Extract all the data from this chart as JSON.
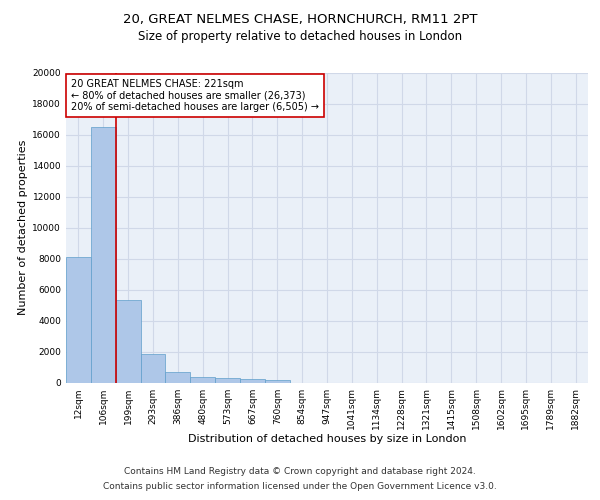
{
  "title1": "20, GREAT NELMES CHASE, HORNCHURCH, RM11 2PT",
  "title2": "Size of property relative to detached houses in London",
  "xlabel": "Distribution of detached houses by size in London",
  "ylabel": "Number of detached properties",
  "categories": [
    "12sqm",
    "106sqm",
    "199sqm",
    "293sqm",
    "386sqm",
    "480sqm",
    "573sqm",
    "667sqm",
    "760sqm",
    "854sqm",
    "947sqm",
    "1041sqm",
    "1134sqm",
    "1228sqm",
    "1321sqm",
    "1415sqm",
    "1508sqm",
    "1602sqm",
    "1695sqm",
    "1789sqm",
    "1882sqm"
  ],
  "values": [
    8100,
    16500,
    5300,
    1850,
    700,
    350,
    270,
    200,
    170,
    0,
    0,
    0,
    0,
    0,
    0,
    0,
    0,
    0,
    0,
    0,
    0
  ],
  "bar_color": "#aec7e8",
  "bar_edge_color": "#5f9eca",
  "annotation_text": "20 GREAT NELMES CHASE: 221sqm\n← 80% of detached houses are smaller (26,373)\n20% of semi-detached houses are larger (6,505) →",
  "vline_x": 1.5,
  "annotation_box_color": "#ffffff",
  "annotation_box_edge": "#cc0000",
  "vline_color": "#cc0000",
  "grid_color": "#d0d8e8",
  "bg_color": "#eaf0f8",
  "footnote1": "Contains HM Land Registry data © Crown copyright and database right 2024.",
  "footnote2": "Contains public sector information licensed under the Open Government Licence v3.0.",
  "ylim": [
    0,
    20000
  ],
  "yticks": [
    0,
    2000,
    4000,
    6000,
    8000,
    10000,
    12000,
    14000,
    16000,
    18000,
    20000
  ],
  "title1_fontsize": 9.5,
  "title2_fontsize": 8.5,
  "xlabel_fontsize": 8,
  "ylabel_fontsize": 8,
  "tick_fontsize": 6.5,
  "annot_fontsize": 7,
  "footnote_fontsize": 6.5
}
